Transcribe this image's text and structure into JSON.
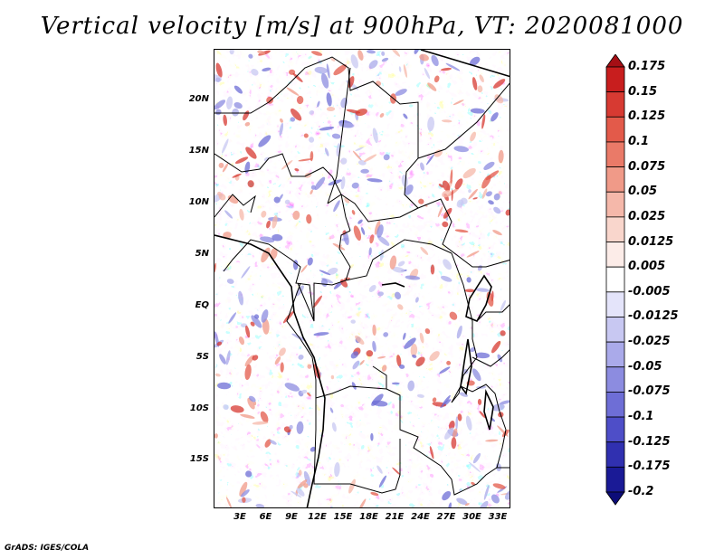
{
  "title": "Vertical velocity [m/s] at 900hPa, VT: 2020081000",
  "credit": "GrADS: IGES/COLA",
  "lat_labels": [
    "20N",
    "15N",
    "10N",
    "5N",
    "EQ",
    "5S",
    "10S",
    "15S"
  ],
  "lon_labels": [
    "3E",
    "6E",
    "9E",
    "12E",
    "15E",
    "18E",
    "21E",
    "24E",
    "27E",
    "30E",
    "33E"
  ],
  "colorbar": {
    "labels": [
      "0.175",
      "0.15",
      "0.125",
      "0.1",
      "0.075",
      "0.05",
      "0.025",
      "0.0125",
      "0.005",
      "-0.005",
      "-0.0125",
      "-0.025",
      "-0.05",
      "-0.075",
      "-0.1",
      "-0.125",
      "-0.175",
      "-0.2"
    ],
    "colors": [
      "#a50f15",
      "#c81e1e",
      "#d73a32",
      "#e35a4a",
      "#ea7a68",
      "#f09a88",
      "#f5b8aa",
      "#f9d6cc",
      "#fcece8",
      "#ffffff",
      "#e4e4fa",
      "#c8c8f2",
      "#aaaaea",
      "#8c8ce0",
      "#6e6ed6",
      "#4e4ec8",
      "#3030b0",
      "#1a1a96",
      "#0c0c78"
    ]
  }
}
